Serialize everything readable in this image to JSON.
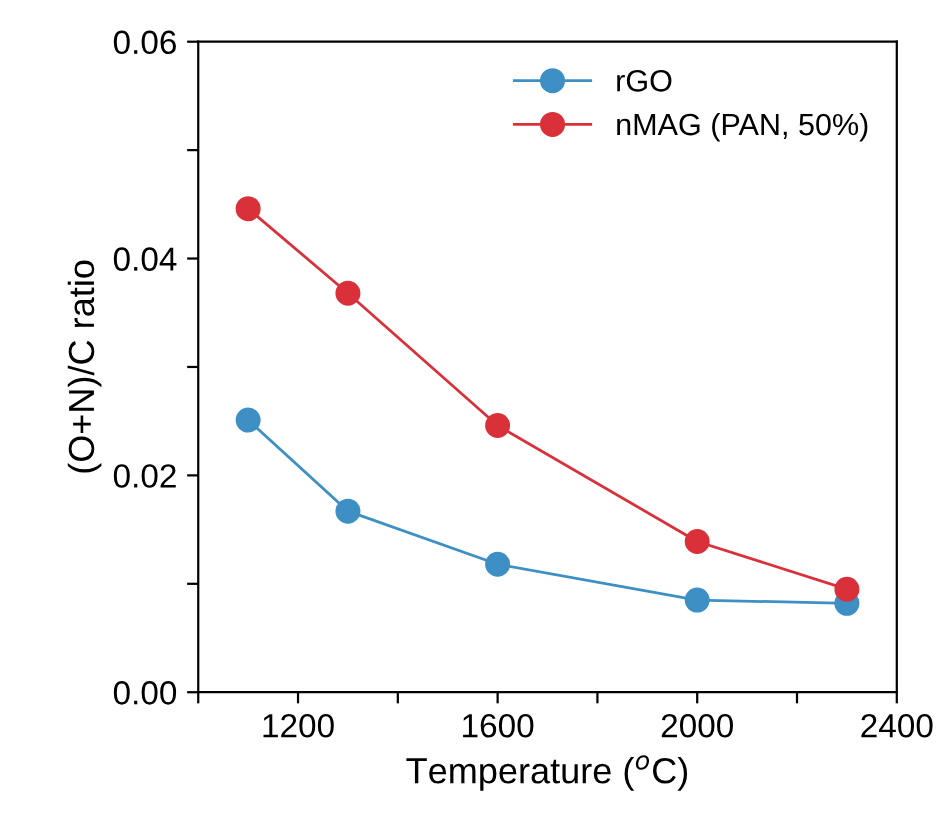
{
  "chart_data": {
    "type": "line",
    "xlabel": "Temperature ($^{o}$C)",
    "ylabel": "(O+N)/C ratio",
    "x": [
      1100,
      1300,
      1600,
      2000,
      2300
    ],
    "series": [
      {
        "name": "rGO",
        "color": "#3d8fc4",
        "values": [
          0.0251,
          0.0167,
          0.0118,
          0.0085,
          0.0082
        ]
      },
      {
        "name": "nMAG (PAN, 50%)",
        "color": "#d9303a",
        "values": [
          0.0446,
          0.0368,
          0.0246,
          0.0139,
          0.0095
        ]
      }
    ],
    "xlim": [
      1000,
      2400
    ],
    "xticks": [
      {
        "value": 1000,
        "label": null
      },
      1200,
      {
        "value": 1400,
        "label": null
      },
      1600,
      {
        "value": 1800,
        "label": null
      },
      2000,
      {
        "value": 2200,
        "label": null
      },
      2400
    ],
    "ylim": [
      0,
      0.06
    ],
    "yticks": [
      {
        "value": 0,
        "label": "0.00"
      },
      {
        "value": 0.01,
        "label": null
      },
      {
        "value": 0.02,
        "label": "0.02"
      },
      {
        "value": 0.03,
        "label": null
      },
      {
        "value": 0.04,
        "label": "0.04"
      },
      {
        "value": 0.05,
        "label": null
      },
      {
        "value": 0.06,
        "label": "0.06"
      }
    ],
    "grid": false,
    "legend": "top right",
    "marker": "circle",
    "line_style": "solid"
  }
}
